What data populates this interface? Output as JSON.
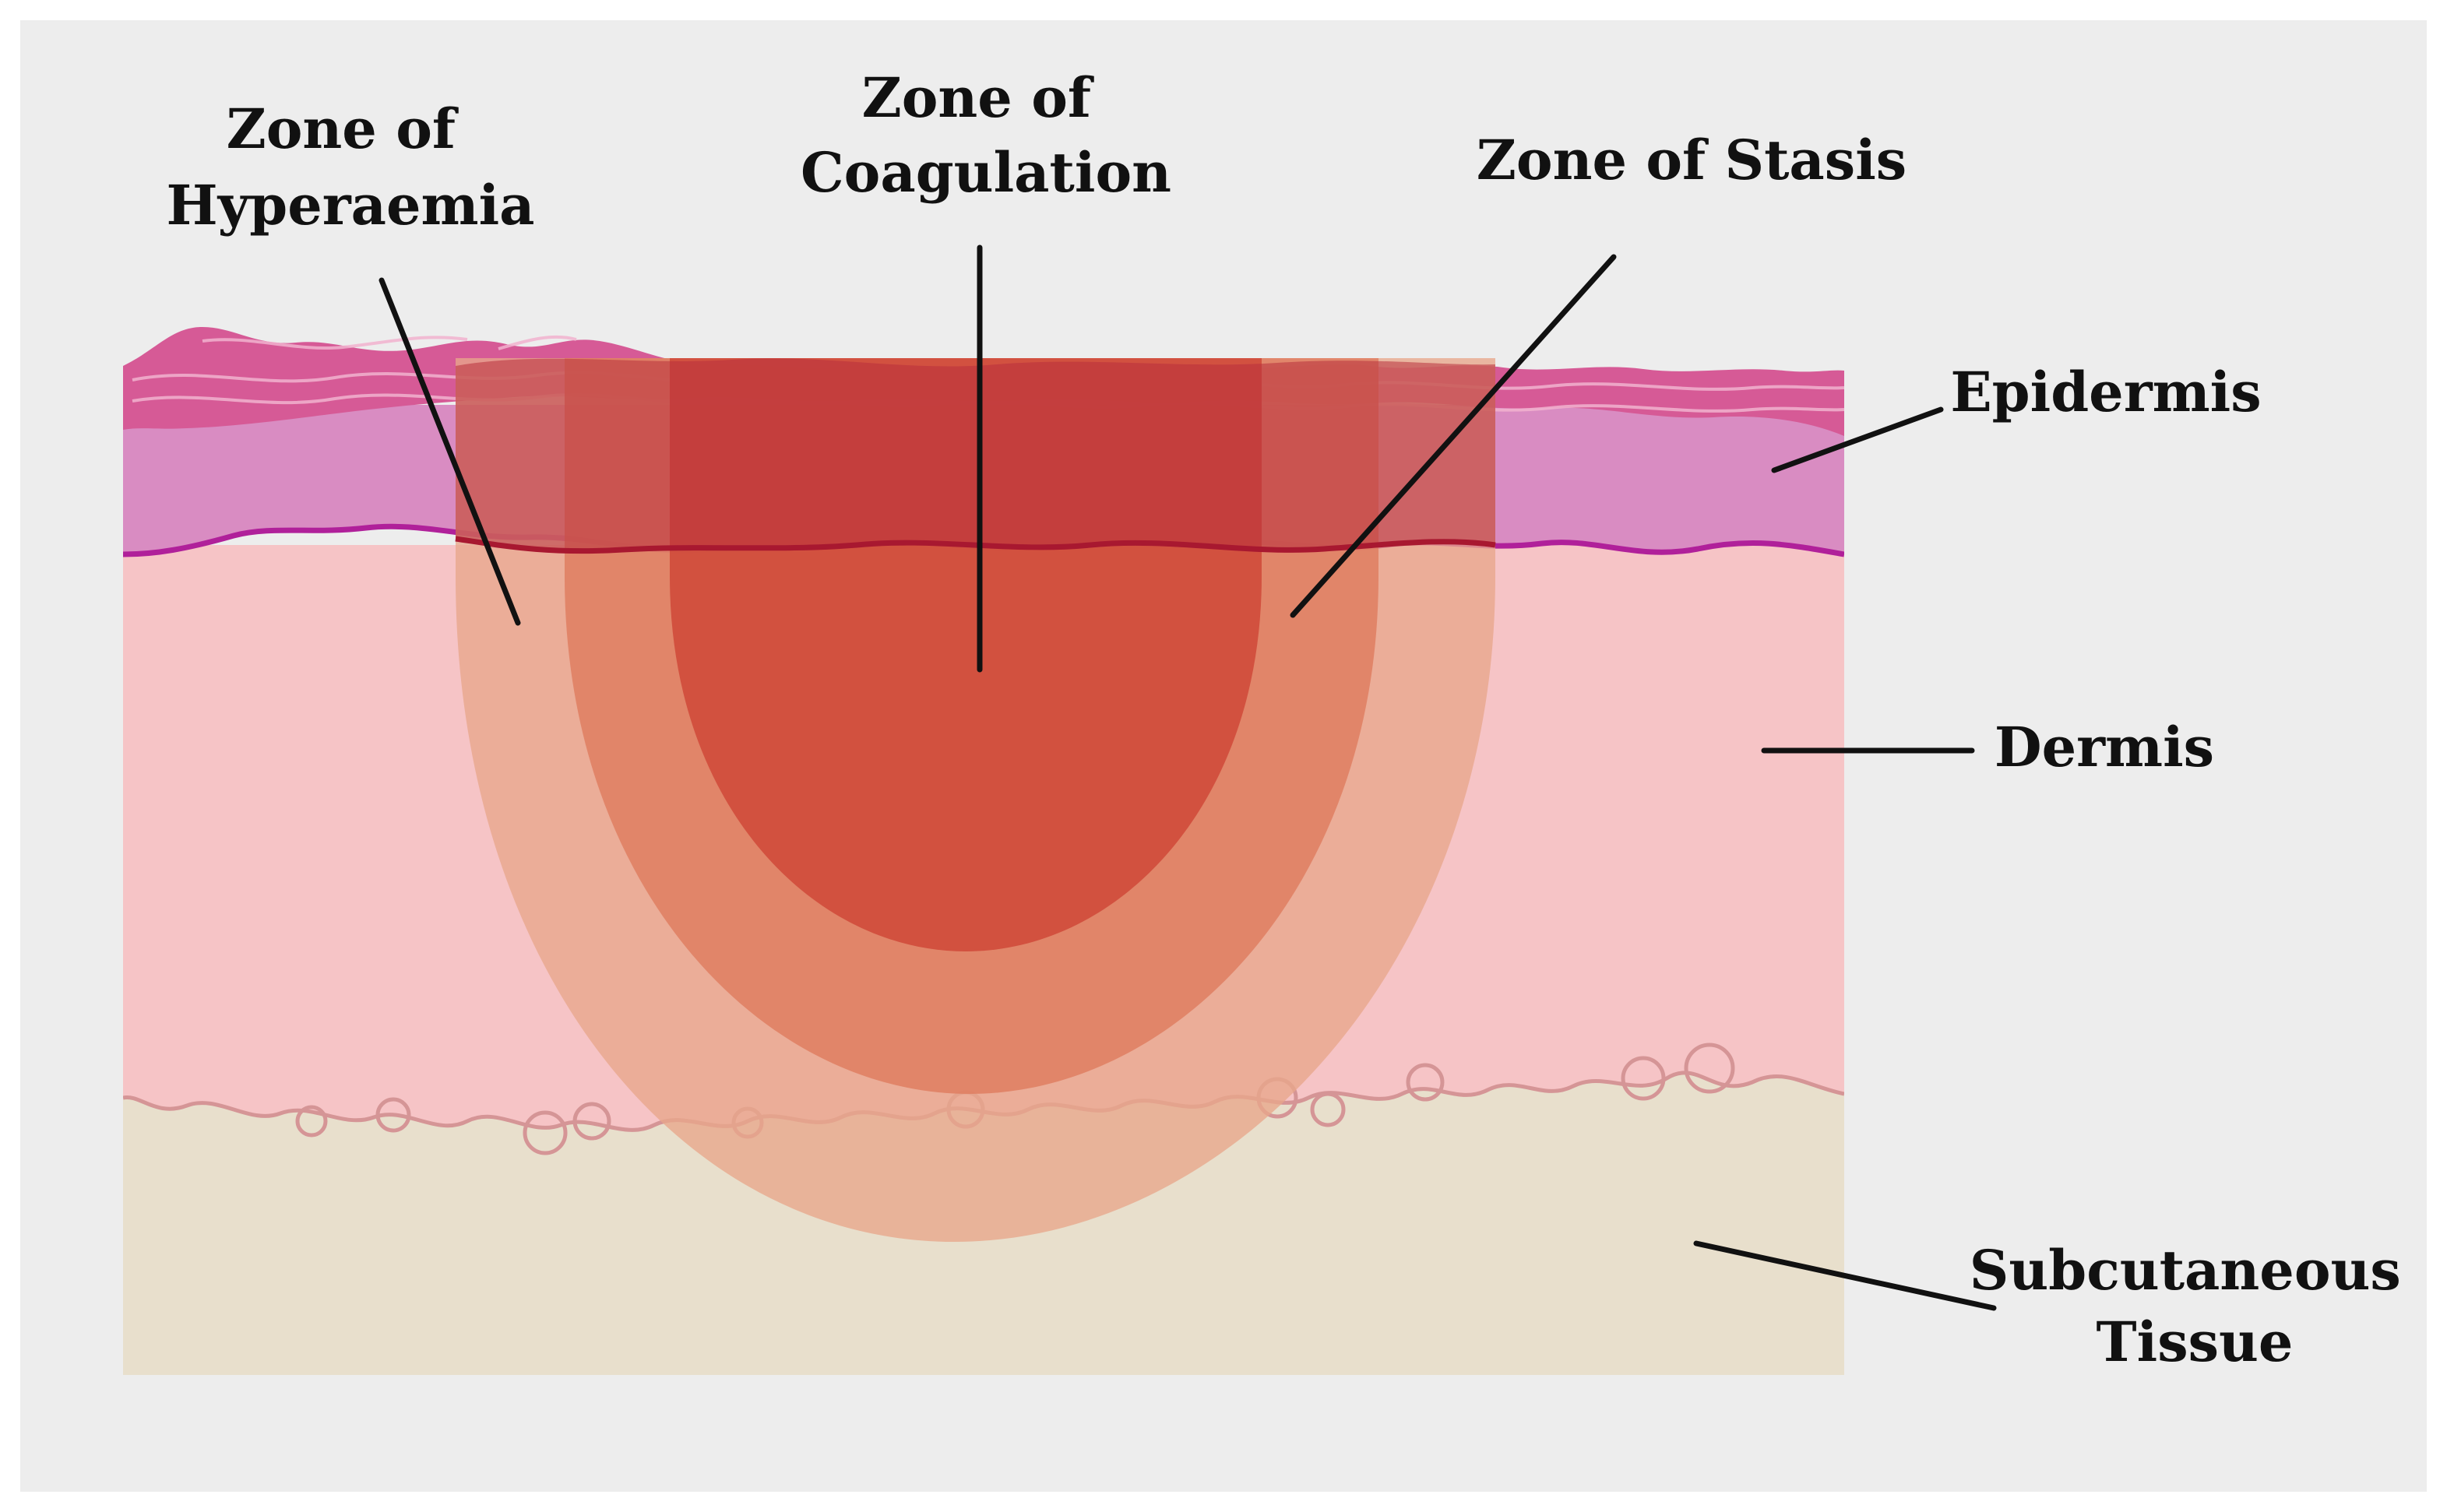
{
  "labels": {
    "hyperaemia": [
      "Zone of",
      "Hyperaemia"
    ],
    "coagulation": [
      "Zone of",
      "Coagulation"
    ],
    "stasis": "Zone of Stasis",
    "epidermis": "Epidermis",
    "dermis": "Dermis",
    "subcutaneous": [
      "Subcutaneous",
      "Tissue"
    ]
  },
  "colors": {
    "background": "#ededed",
    "epidermis_top": "#d65a96",
    "epidermis_lower": "#d98cc2",
    "basement_line": "#b0209a",
    "dermis": "#f6c4c6",
    "subcutaneous": "#e8dfcc",
    "zone_hyperaemia": "#e8a78a",
    "zone_stasis": "#de7a5e",
    "zone_coagulation": "#cf4838",
    "leader_line": "#111111"
  }
}
